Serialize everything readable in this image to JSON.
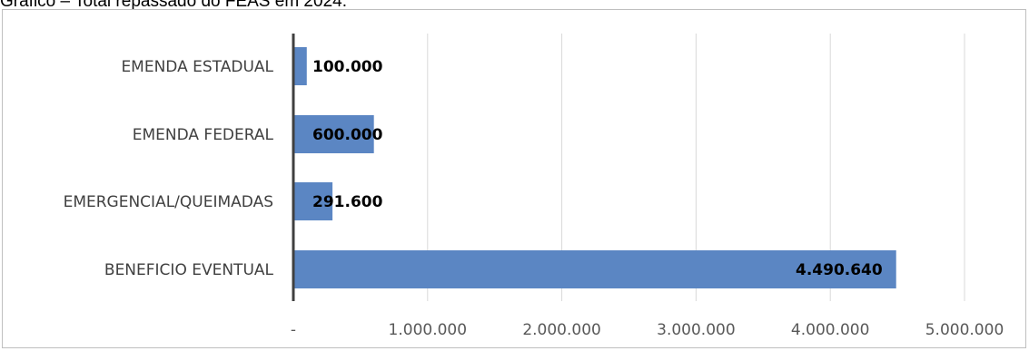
{
  "caption": "Gráfico – Total repassado do FEAS em 2024.",
  "chart_data": {
    "type": "bar",
    "orientation": "horizontal",
    "title": "",
    "categories": [
      "EMENDA ESTADUAL",
      "EMENDA FEDERAL",
      "EMERGENCIAL/QUEIMADAS",
      "BENEFICIO EVENTUAL"
    ],
    "values": [
      100000,
      600000,
      291600,
      4490640
    ],
    "data_labels": [
      "100.000",
      "600.000",
      "291.600",
      "4.490.640"
    ],
    "xlim": [
      0,
      5000000
    ],
    "x_ticks": [
      0,
      1000000,
      2000000,
      3000000,
      4000000,
      5000000
    ],
    "x_tick_labels": [
      "-",
      "1.000.000",
      "2.000.000",
      "3.000.000",
      "4.000.000",
      "5.000.000"
    ],
    "grid": "vertical",
    "legend": "none",
    "bar_color": "#5b86c3"
  }
}
